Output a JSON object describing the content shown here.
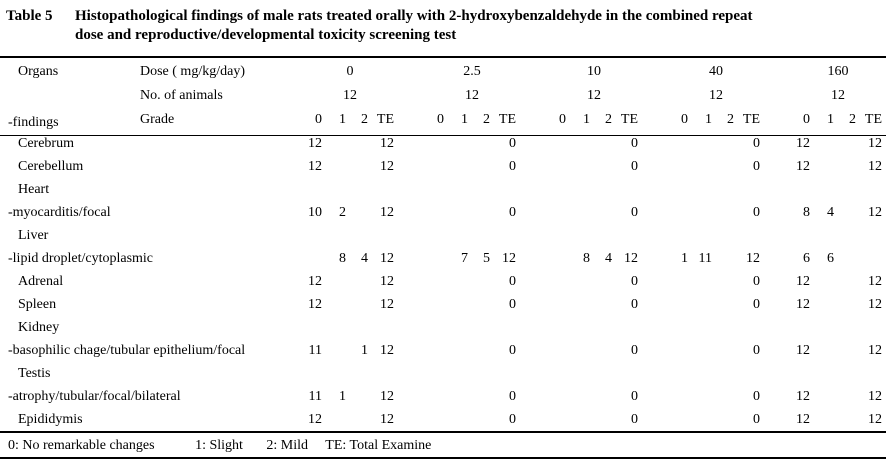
{
  "caption": {
    "label": "Table 5",
    "title_line1": "Histopathological findings of male rats treated orally with 2-hydroxybenzaldehyde in the combined repeat",
    "title_line2": "dose and reproductive/developmental toxicity screening test"
  },
  "header": {
    "organs_label": "Organs",
    "findings_label": "-findings",
    "dose_label": "Dose ( mg/kg/day)",
    "animals_label": "No. of animals",
    "grade_label": "Grade",
    "doses": [
      "0",
      "2.5",
      "10",
      "40",
      "160"
    ],
    "animals_per_group": [
      "12",
      "12",
      "12",
      "12",
      "12"
    ],
    "grade_cols": [
      "0",
      "1",
      "2",
      "TE"
    ]
  },
  "rows": [
    {
      "organ": "Cerebrum",
      "values": [
        [
          "12",
          "",
          "",
          "12"
        ],
        [
          "",
          "",
          "",
          "0"
        ],
        [
          "",
          "",
          "",
          "0"
        ],
        [
          "",
          "",
          "",
          "0"
        ],
        [
          "12",
          "",
          "",
          "12"
        ]
      ]
    },
    {
      "organ": "Cerebellum",
      "values": [
        [
          "12",
          "",
          "",
          "12"
        ],
        [
          "",
          "",
          "",
          "0"
        ],
        [
          "",
          "",
          "",
          "0"
        ],
        [
          "",
          "",
          "",
          "0"
        ],
        [
          "12",
          "",
          "",
          "12"
        ]
      ]
    },
    {
      "organ": "Heart",
      "values": [
        [
          "",
          "",
          "",
          ""
        ],
        [
          "",
          "",
          "",
          ""
        ],
        [
          "",
          "",
          "",
          ""
        ],
        [
          "",
          "",
          "",
          ""
        ],
        [
          "",
          "",
          "",
          ""
        ]
      ]
    },
    {
      "organ": "-myocarditis/focal",
      "values": [
        [
          "10",
          "2",
          "",
          "12"
        ],
        [
          "",
          "",
          "",
          "0"
        ],
        [
          "",
          "",
          "",
          "0"
        ],
        [
          "",
          "",
          "",
          "0"
        ],
        [
          "8",
          "4",
          "",
          "12"
        ]
      ]
    },
    {
      "organ": "Liver",
      "values": [
        [
          "",
          "",
          "",
          ""
        ],
        [
          "",
          "",
          "",
          ""
        ],
        [
          "",
          "",
          "",
          ""
        ],
        [
          "",
          "",
          "",
          ""
        ],
        [
          "",
          "",
          "",
          ""
        ]
      ]
    },
    {
      "organ": "-lipid droplet/cytoplasmic",
      "values": [
        [
          "",
          "8",
          "4",
          "12"
        ],
        [
          "",
          "7",
          "5",
          "12"
        ],
        [
          "",
          "8",
          "4",
          "12"
        ],
        [
          "1",
          "11",
          "",
          "12"
        ],
        [
          "6",
          "6",
          "",
          ""
        ]
      ]
    },
    {
      "organ": "Adrenal",
      "values": [
        [
          "12",
          "",
          "",
          "12"
        ],
        [
          "",
          "",
          "",
          "0"
        ],
        [
          "",
          "",
          "",
          "0"
        ],
        [
          "",
          "",
          "",
          "0"
        ],
        [
          "12",
          "",
          "",
          "12"
        ]
      ]
    },
    {
      "organ": "Spleen",
      "values": [
        [
          "12",
          "",
          "",
          "12"
        ],
        [
          "",
          "",
          "",
          "0"
        ],
        [
          "",
          "",
          "",
          "0"
        ],
        [
          "",
          "",
          "",
          "0"
        ],
        [
          "12",
          "",
          "",
          "12"
        ]
      ]
    },
    {
      "organ": "Kidney",
      "values": [
        [
          "",
          "",
          "",
          ""
        ],
        [
          "",
          "",
          "",
          ""
        ],
        [
          "",
          "",
          "",
          ""
        ],
        [
          "",
          "",
          "",
          ""
        ],
        [
          "",
          "",
          "",
          ""
        ]
      ]
    },
    {
      "organ": "-basophilic chage/tubular epithelium/focal",
      "values": [
        [
          "11",
          "",
          "1",
          "12"
        ],
        [
          "",
          "",
          "",
          "0"
        ],
        [
          "",
          "",
          "",
          "0"
        ],
        [
          "",
          "",
          "",
          "0"
        ],
        [
          "12",
          "",
          "",
          "12"
        ]
      ]
    },
    {
      "organ": "Testis",
      "values": [
        [
          "",
          "",
          "",
          ""
        ],
        [
          "",
          "",
          "",
          ""
        ],
        [
          "",
          "",
          "",
          ""
        ],
        [
          "",
          "",
          "",
          ""
        ],
        [
          "",
          "",
          "",
          ""
        ]
      ]
    },
    {
      "organ": "-atrophy/tubular/focal/bilateral",
      "values": [
        [
          "11",
          "1",
          "",
          "12"
        ],
        [
          "",
          "",
          "",
          "0"
        ],
        [
          "",
          "",
          "",
          "0"
        ],
        [
          "",
          "",
          "",
          "0"
        ],
        [
          "12",
          "",
          "",
          "12"
        ]
      ]
    },
    {
      "organ": "Epididymis",
      "values": [
        [
          "12",
          "",
          "",
          "12"
        ],
        [
          "",
          "",
          "",
          "0"
        ],
        [
          "",
          "",
          "",
          "0"
        ],
        [
          "",
          "",
          "",
          "0"
        ],
        [
          "12",
          "",
          "",
          "12"
        ]
      ]
    }
  ],
  "legend": [
    "0: No remarkable changes",
    "1: Slight",
    "2: Mild",
    "TE: Total Examine"
  ]
}
